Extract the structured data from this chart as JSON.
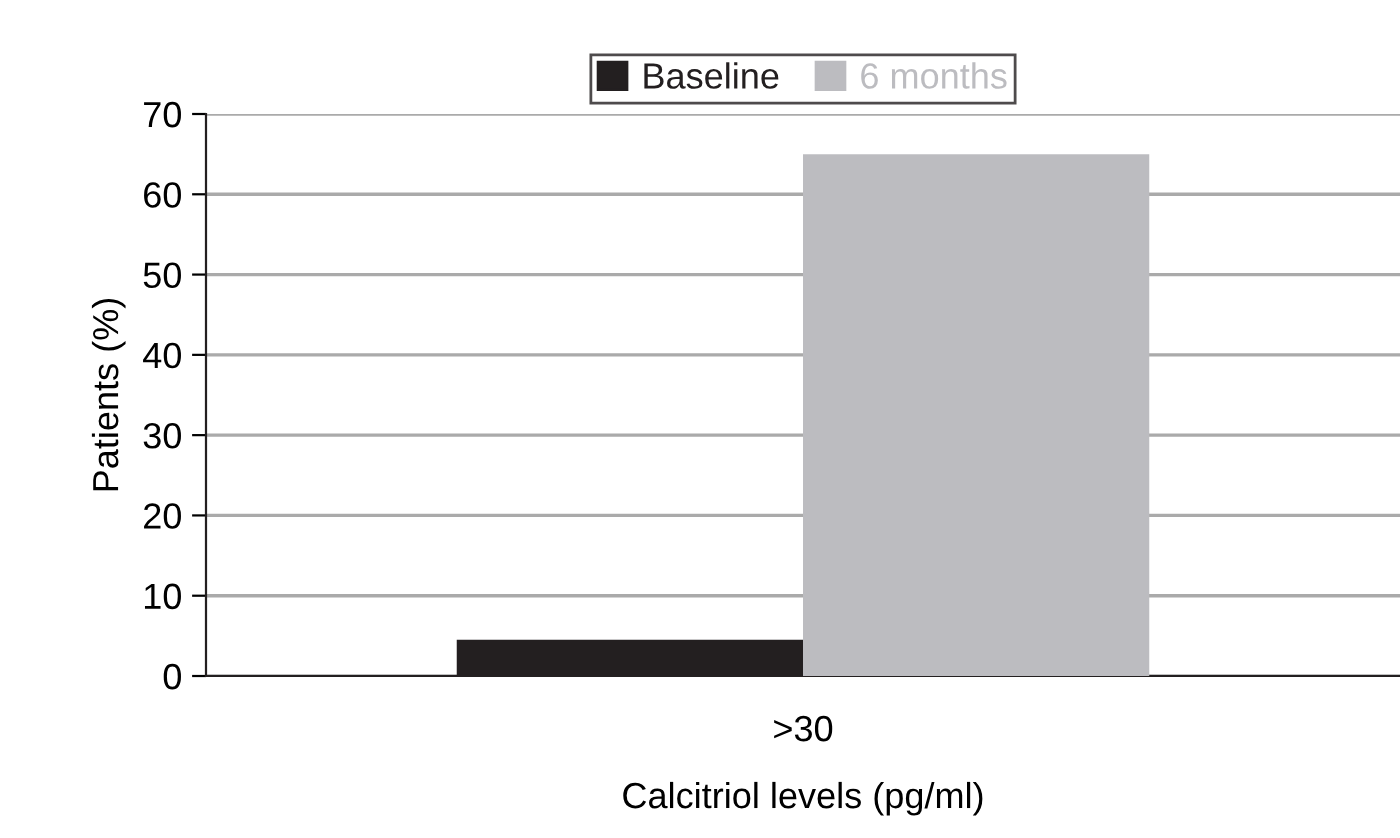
{
  "chart_data": {
    "type": "bar",
    "xlabel": "Calcitriol levels (pg/ml)",
    "ylabel": "Patients (%)",
    "categories": [
      ">30"
    ],
    "series": [
      {
        "name": "Baseline",
        "color": "#231f20",
        "values": [
          4.5
        ]
      },
      {
        "name": "6 months",
        "color": "#bcbcc0",
        "values": [
          65
        ]
      }
    ],
    "ylim": [
      0,
      70
    ],
    "yticks": [
      0,
      10,
      20,
      30,
      40,
      50,
      60,
      70
    ],
    "grid": "y",
    "legend": "top"
  }
}
